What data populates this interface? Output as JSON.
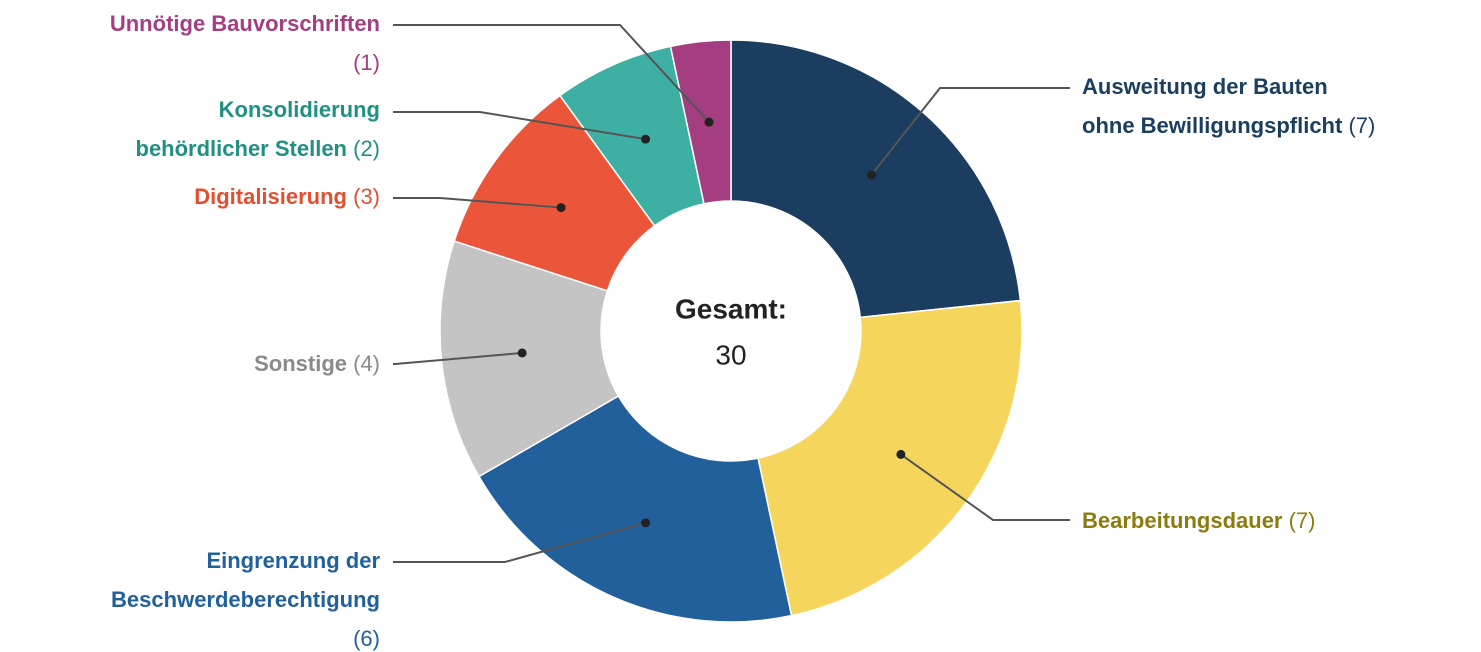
{
  "chart_data": {
    "type": "donut",
    "center_label": "Gesamt:",
    "total": 30,
    "categories": [
      "Ausweitung der Bauten ohne Bewilligungspflicht",
      "Bearbeitungsdauer",
      "Eingrenzung der Beschwerdeberechtigung",
      "Sonstige",
      "Digitalisierung",
      "Konsolidierung behördlicher Stellen",
      "Unnötige Bauvorschriften"
    ],
    "values": [
      7,
      7,
      6,
      4,
      3,
      2,
      1
    ],
    "value_labels": [
      "(7)",
      "(7)",
      "(6)",
      "(4)",
      "(3)",
      "(2)",
      "(1)"
    ],
    "colors": [
      "#1b3d5f",
      "#f5d55c",
      "#22609b",
      "#c4c4c4",
      "#eb563b",
      "#3eafa3",
      "#a53e80"
    ],
    "label_colors": [
      "#1b3d5f",
      "#8c7b0e",
      "#22609b",
      "#8a8a8a",
      "#e24f31",
      "#1f9082",
      "#a53e80"
    ]
  }
}
